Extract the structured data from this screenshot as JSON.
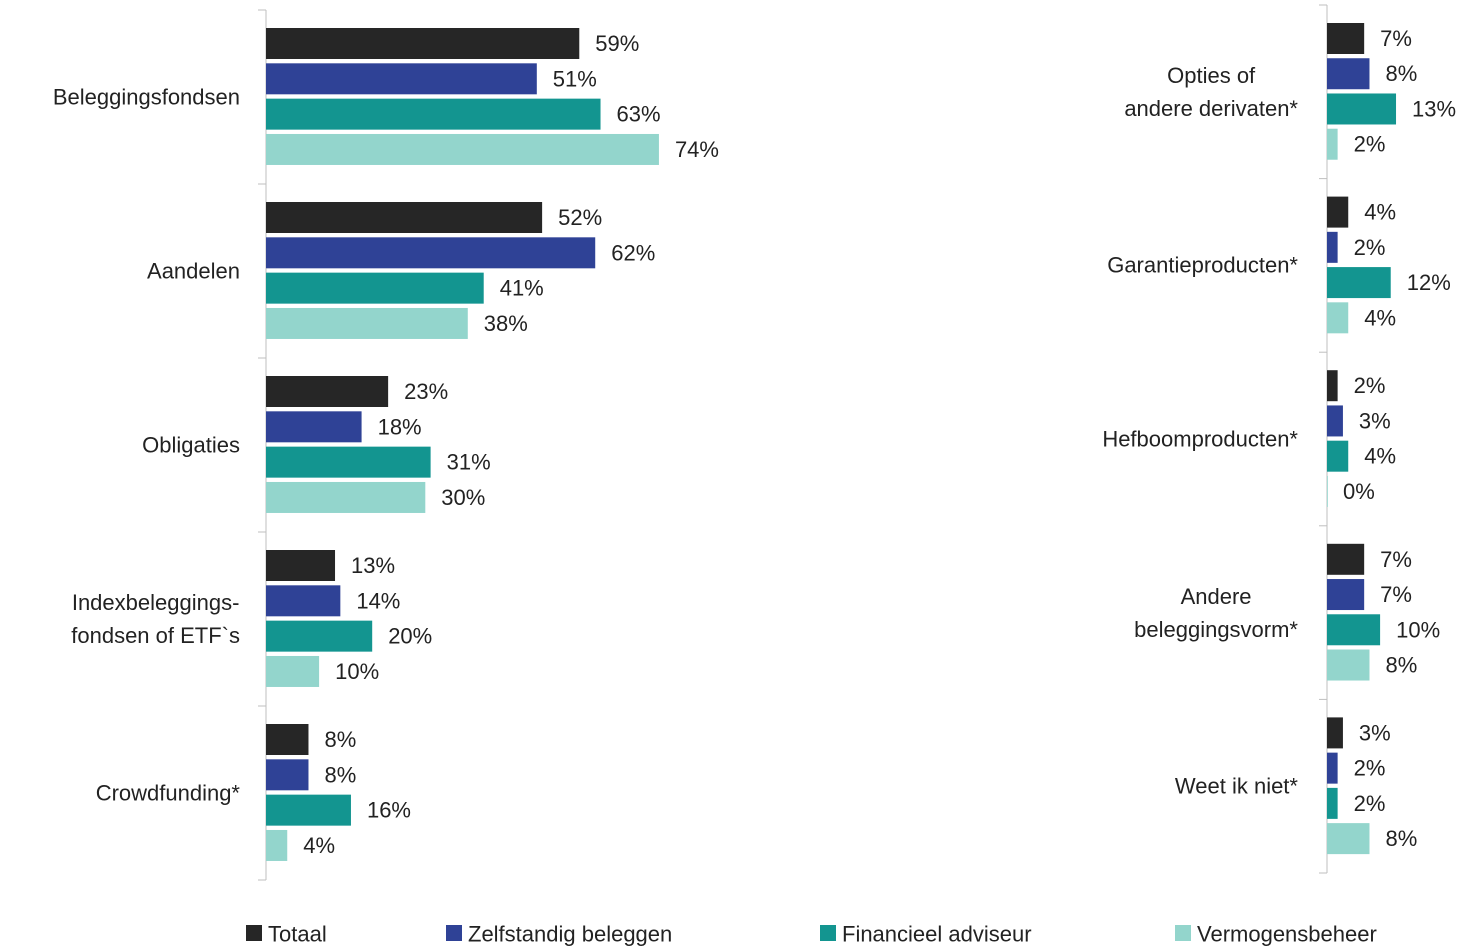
{
  "chart_data": {
    "type": "bar",
    "orientation": "horizontal",
    "series": [
      {
        "name": "Totaal",
        "color": "#262626"
      },
      {
        "name": "Zelfstandig beleggen",
        "color": "#2f4296"
      },
      {
        "name": "Financieel adviseur",
        "color": "#139590"
      },
      {
        "name": "Vermogensbeheer",
        "color": "#93d5cc"
      }
    ],
    "panels": [
      {
        "categories": [
          "Beleggingsfondsen",
          "Aandelen",
          "Obligaties",
          "Indexbeleggings-\nfondsen of ETF`s",
          "Crowdfunding*"
        ],
        "values": [
          [
            59,
            51,
            63,
            74
          ],
          [
            52,
            62,
            41,
            38
          ],
          [
            23,
            18,
            31,
            30
          ],
          [
            13,
            14,
            20,
            10
          ],
          [
            8,
            8,
            16,
            4
          ]
        ],
        "value_labels": [
          [
            "59%",
            "51%",
            "63%",
            "74%"
          ],
          [
            "52%",
            "62%",
            "41%",
            "38%"
          ],
          [
            "23%",
            "18%",
            "31%",
            "30%"
          ],
          [
            "13%",
            "14%",
            "20%",
            "10%"
          ],
          [
            "8%",
            "8%",
            "16%",
            "4%"
          ]
        ]
      },
      {
        "categories": [
          "Opties of\nandere derivaten*",
          "Garantieproducten*",
          "Hefboomproducten*",
          "Andere\nbeleggingsvorm*",
          "Weet ik niet*"
        ],
        "values": [
          [
            7,
            8,
            13,
            2
          ],
          [
            4,
            2,
            12,
            4
          ],
          [
            2,
            3,
            4,
            0
          ],
          [
            7,
            7,
            10,
            8
          ],
          [
            3,
            2,
            2,
            8
          ]
        ],
        "value_labels": [
          [
            "7%",
            "8%",
            "13%",
            "2%"
          ],
          [
            "4%",
            "2%",
            "12%",
            "4%"
          ],
          [
            "2%",
            "3%",
            "4%",
            "0%"
          ],
          [
            "7%",
            "7%",
            "10%",
            "8%"
          ],
          [
            "3%",
            "2%",
            "2%",
            "8%"
          ]
        ]
      }
    ]
  }
}
